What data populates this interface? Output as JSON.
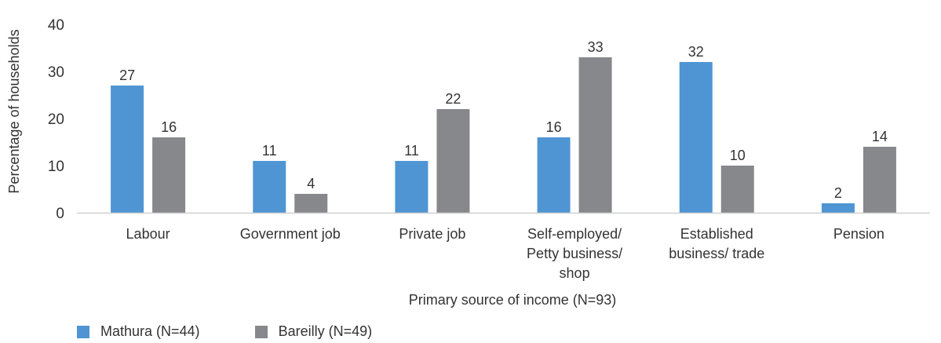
{
  "chart_data": {
    "type": "bar",
    "categories": [
      [
        "Labour"
      ],
      [
        "Government job"
      ],
      [
        "Private job"
      ],
      [
        "Self-employed/",
        "Petty business/",
        "shop"
      ],
      [
        "Established",
        "business/ trade"
      ],
      [
        "Pension"
      ]
    ],
    "series": [
      {
        "name": "Mathura (N=44)",
        "color": "#4f95d3",
        "values": [
          27,
          11,
          11,
          16,
          32,
          2
        ]
      },
      {
        "name": "Bareilly (N=49)",
        "color": "#87888c",
        "values": [
          16,
          4,
          22,
          33,
          10,
          14
        ]
      }
    ],
    "data_labels": [
      [
        "27",
        "11",
        "11",
        "16",
        "32",
        "2"
      ],
      [
        "16",
        "4",
        "22",
        "33",
        "10",
        "14"
      ]
    ],
    "xlabel": "Primary source of income (N=93)",
    "ylabel": "Percentage of households",
    "ylim": [
      0,
      40
    ],
    "yticks": [
      0,
      10,
      20,
      30,
      40
    ],
    "grid": false,
    "legend_position": "bottom-left"
  }
}
